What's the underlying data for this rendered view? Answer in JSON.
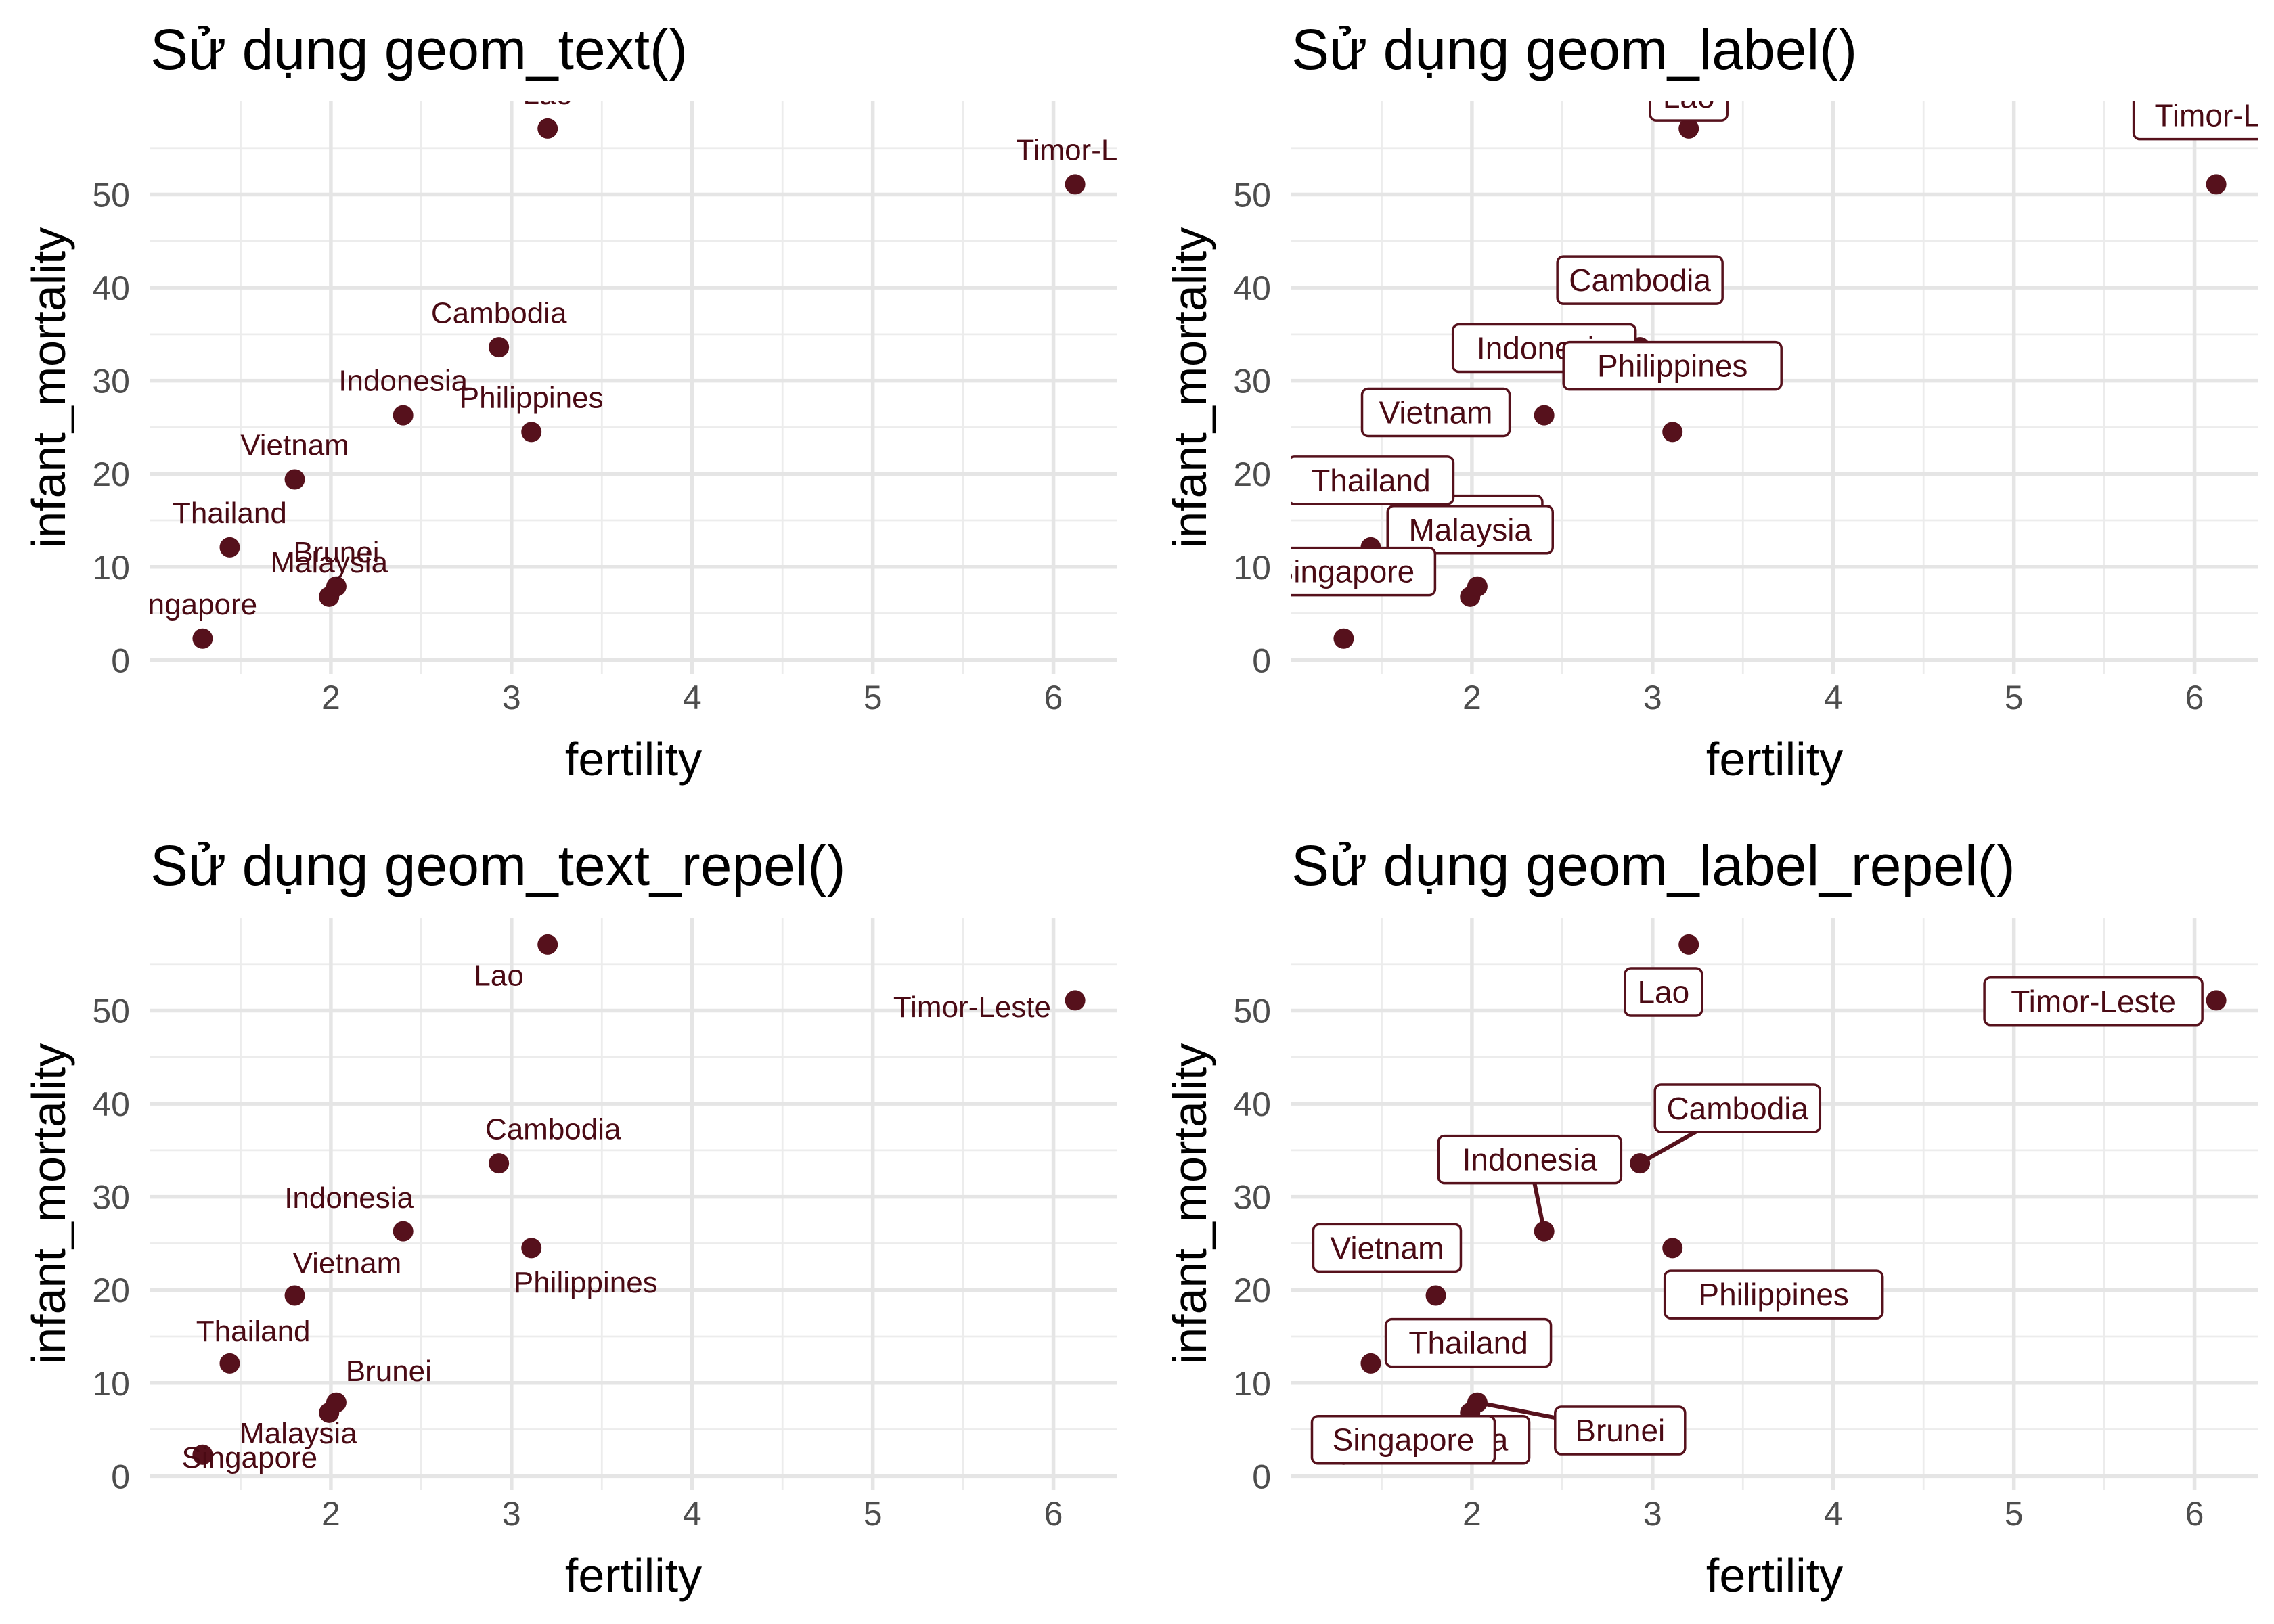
{
  "colors": {
    "point": "#56111c",
    "label_text": "#4a0a14",
    "segment": "#56111c",
    "grid": "#e5e5e5",
    "background": "#ffffff"
  },
  "chart_data": [
    {
      "type": "scatter",
      "title": "Sử dụng geom_text()",
      "label_style": "text",
      "xlabel": "fertility",
      "ylabel": "infant_mortality",
      "x_ticks": [
        2,
        3,
        4,
        5,
        6
      ],
      "y_ticks": [
        0,
        10,
        20,
        30,
        40,
        50
      ],
      "xlim": [
        1.0,
        6.35
      ],
      "ylim": [
        -1.5,
        60
      ],
      "grid": true,
      "points": [
        {
          "x": 1.29,
          "y": 2.3
        },
        {
          "x": 1.44,
          "y": 12.1
        },
        {
          "x": 1.8,
          "y": 19.4
        },
        {
          "x": 1.99,
          "y": 6.8
        },
        {
          "x": 2.03,
          "y": 7.9
        },
        {
          "x": 2.4,
          "y": 26.3
        },
        {
          "x": 2.93,
          "y": 33.6
        },
        {
          "x": 3.11,
          "y": 24.5
        },
        {
          "x": 3.2,
          "y": 57.1
        },
        {
          "x": 6.12,
          "y": 51.1
        }
      ],
      "labels": [
        {
          "text": "ngapore",
          "x": 1.29,
          "y": 6.0
        },
        {
          "text": "Thailand",
          "x": 1.44,
          "y": 15.8
        },
        {
          "text": "Vietnam",
          "x": 1.8,
          "y": 23.1
        },
        {
          "text": "Malaysia",
          "x": 1.99,
          "y": 10.5
        },
        {
          "text": "Brunei",
          "x": 2.03,
          "y": 11.6
        },
        {
          "text": "Indonesia",
          "x": 2.4,
          "y": 30.0
        },
        {
          "text": "Cambodia",
          "x": 2.93,
          "y": 37.3
        },
        {
          "text": "Philippines",
          "x": 3.11,
          "y": 28.2
        },
        {
          "text": "Lao",
          "x": 3.2,
          "y": 60.8
        },
        {
          "text": "Timor-Le",
          "x": 6.12,
          "y": 54.8
        }
      ]
    },
    {
      "type": "scatter",
      "title": "Sử dụng geom_label()",
      "label_style": "box",
      "xlabel": "fertility",
      "ylabel": "infant_mortality",
      "x_ticks": [
        2,
        3,
        4,
        5,
        6
      ],
      "y_ticks": [
        0,
        10,
        20,
        30,
        40,
        50
      ],
      "xlim": [
        1.0,
        6.35
      ],
      "ylim": [
        -1.5,
        60
      ],
      "grid": true,
      "points": [
        {
          "x": 1.29,
          "y": 2.3
        },
        {
          "x": 1.44,
          "y": 12.1
        },
        {
          "x": 1.8,
          "y": 19.4
        },
        {
          "x": 1.99,
          "y": 6.8
        },
        {
          "x": 2.03,
          "y": 7.9
        },
        {
          "x": 2.4,
          "y": 26.3
        },
        {
          "x": 2.93,
          "y": 33.6
        },
        {
          "x": 3.11,
          "y": 24.5
        },
        {
          "x": 3.2,
          "y": 57.1
        },
        {
          "x": 6.12,
          "y": 51.1
        }
      ],
      "labels": [
        {
          "text": "Lao",
          "x": 3.2,
          "y": 60.5
        },
        {
          "text": "Timor-Le",
          "x": 6.12,
          "y": 58.5
        },
        {
          "text": "Cambodia",
          "x": 2.93,
          "y": 40.8
        },
        {
          "text": "Indonesia",
          "x": 2.4,
          "y": 33.5
        },
        {
          "text": "Philippines",
          "x": 3.11,
          "y": 31.6
        },
        {
          "text": "Vietnam",
          "x": 1.8,
          "y": 26.6
        },
        {
          "text": "Brunei",
          "x": 2.03,
          "y": 15.1
        },
        {
          "text": "Thailand",
          "x": 1.44,
          "y": 19.3
        },
        {
          "text": "Malaysia",
          "x": 1.99,
          "y": 14.0
        },
        {
          "text": "Singapore",
          "x": 1.29,
          "y": 9.5
        }
      ]
    },
    {
      "type": "scatter",
      "title": "Sử dụng geom_text_repel()",
      "label_style": "text",
      "xlabel": "fertility",
      "ylabel": "infant_mortality",
      "x_ticks": [
        2,
        3,
        4,
        5,
        6
      ],
      "y_ticks": [
        0,
        10,
        20,
        30,
        40,
        50
      ],
      "xlim": [
        1.0,
        6.35
      ],
      "ylim": [
        -1.5,
        60
      ],
      "grid": true,
      "points": [
        {
          "x": 1.29,
          "y": 2.3
        },
        {
          "x": 1.44,
          "y": 12.1
        },
        {
          "x": 1.8,
          "y": 19.4
        },
        {
          "x": 1.99,
          "y": 6.8
        },
        {
          "x": 2.03,
          "y": 7.9
        },
        {
          "x": 2.4,
          "y": 26.3
        },
        {
          "x": 2.93,
          "y": 33.6
        },
        {
          "x": 3.11,
          "y": 24.5
        },
        {
          "x": 3.2,
          "y": 57.1
        },
        {
          "x": 6.12,
          "y": 51.1
        }
      ],
      "labels": [
        {
          "text": "Lao",
          "x": 2.93,
          "y": 53.8
        },
        {
          "text": "Timor-Leste",
          "x": 5.55,
          "y": 50.4
        },
        {
          "text": "Cambodia",
          "x": 3.23,
          "y": 37.3
        },
        {
          "text": "Indonesia",
          "x": 2.1,
          "y": 29.9
        },
        {
          "text": "Philippines",
          "x": 3.41,
          "y": 20.8
        },
        {
          "text": "Vietnam",
          "x": 2.09,
          "y": 22.9
        },
        {
          "text": "Thailand",
          "x": 1.57,
          "y": 15.6
        },
        {
          "text": "Brunei",
          "x": 2.32,
          "y": 11.3
        },
        {
          "text": "Malaysia",
          "x": 1.82,
          "y": 4.6
        },
        {
          "text": "Singapore",
          "x": 1.55,
          "y": 2.0
        }
      ]
    },
    {
      "type": "scatter",
      "title": "Sử dụng geom_label_repel()",
      "label_style": "box",
      "xlabel": "fertility",
      "ylabel": "infant_mortality",
      "x_ticks": [
        2,
        3,
        4,
        5,
        6
      ],
      "y_ticks": [
        0,
        10,
        20,
        30,
        40,
        50
      ],
      "xlim": [
        1.0,
        6.35
      ],
      "ylim": [
        -1.5,
        60
      ],
      "grid": true,
      "points": [
        {
          "x": 1.29,
          "y": 2.3
        },
        {
          "x": 1.44,
          "y": 12.1
        },
        {
          "x": 1.8,
          "y": 19.4
        },
        {
          "x": 1.99,
          "y": 6.8
        },
        {
          "x": 2.03,
          "y": 7.9
        },
        {
          "x": 2.4,
          "y": 26.3
        },
        {
          "x": 2.93,
          "y": 33.6
        },
        {
          "x": 3.11,
          "y": 24.5
        },
        {
          "x": 3.2,
          "y": 57.1
        },
        {
          "x": 6.12,
          "y": 51.1
        }
      ],
      "labels": [
        {
          "text": "Lao",
          "x": 3.06,
          "y": 52.0,
          "anchor_x": 3.2,
          "anchor_y": 57.1
        },
        {
          "text": "Timor-Leste",
          "x": 5.44,
          "y": 51.0,
          "anchor_x": 6.12,
          "anchor_y": 51.1
        },
        {
          "text": "Cambodia",
          "x": 3.47,
          "y": 39.5,
          "anchor_x": 2.93,
          "anchor_y": 33.6,
          "segment": true
        },
        {
          "text": "Indonesia",
          "x": 2.32,
          "y": 34.0,
          "anchor_x": 2.4,
          "anchor_y": 26.3,
          "segment": true
        },
        {
          "text": "Vietnam",
          "x": 1.53,
          "y": 24.5,
          "anchor_x": 1.8,
          "anchor_y": 19.4
        },
        {
          "text": "Philippines",
          "x": 3.67,
          "y": 19.5,
          "anchor_x": 3.11,
          "anchor_y": 24.5
        },
        {
          "text": "Thailand",
          "x": 1.98,
          "y": 14.3,
          "anchor_x": 1.44,
          "anchor_y": 12.1
        },
        {
          "text": "Malaysia",
          "x": 1.86,
          "y": 3.9,
          "anchor_x": 1.99,
          "anchor_y": 6.8
        },
        {
          "text": "Brunei",
          "x": 2.82,
          "y": 4.9,
          "anchor_x": 2.03,
          "anchor_y": 7.9,
          "segment": true
        },
        {
          "text": "Singapore",
          "x": 1.62,
          "y": 3.9,
          "anchor_x": 1.29,
          "anchor_y": 2.3
        }
      ]
    }
  ]
}
